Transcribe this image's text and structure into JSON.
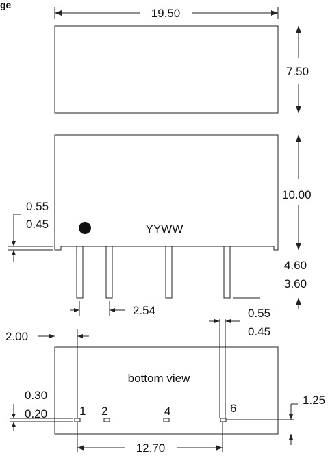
{
  "header_fragment": "ge",
  "top_view": {
    "length": "19.50",
    "width": "7.50"
  },
  "side_view": {
    "height": "10.00",
    "standoff_max": "0.55",
    "standoff_min": "0.45",
    "marking": "YYWW",
    "pin_length_max": "4.60",
    "pin_length_min": "3.60",
    "pin_pitch": "2.54",
    "pin_width_max": "0.55",
    "pin_width_min": "0.45"
  },
  "bottom_view": {
    "label": "bottom view",
    "edge_to_pin1": "2.00",
    "pad_max": "0.30",
    "pad_min": "0.20",
    "pin_row_offset": "1.25",
    "pin1_to_pin6": "12.70",
    "pins": [
      "1",
      "2",
      "4",
      "6"
    ]
  },
  "colors": {
    "line": "#222222",
    "text": "#111111",
    "background": "#ffffff"
  }
}
